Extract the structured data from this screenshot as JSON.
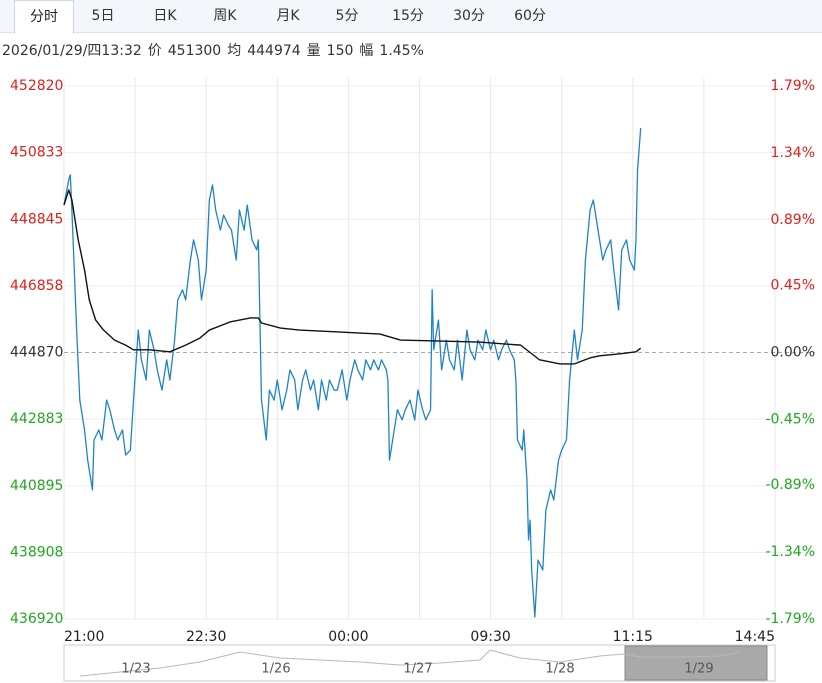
{
  "tabs": [
    "分时",
    "5日",
    "日K",
    "周K",
    "月K",
    "5分",
    "15分",
    "30分",
    "60分"
  ],
  "quote": [
    "2026/01/29/四13:32",
    "价",
    "451300",
    "均",
    "444974",
    "量",
    "150",
    "幅",
    "1.45%"
  ],
  "navigator": [
    "1/23",
    "1/26",
    "1/27",
    "1/28",
    "1/29"
  ],
  "chart_data": {
    "type": "line",
    "xlim": [
      0,
      450
    ],
    "xticks": [
      {
        "value": 0,
        "label": "21:00"
      },
      {
        "value": 90,
        "label": "22:30"
      },
      {
        "value": 180,
        "label": "00:00"
      },
      {
        "value": 270,
        "label": "09:30"
      },
      {
        "value": 360,
        "label": "11:15"
      },
      {
        "value": 450,
        "label": "14:45"
      }
    ],
    "ylim": [
      436920,
      452820
    ],
    "yticks": [
      452820,
      450833,
      448845,
      446858,
      444870,
      442883,
      440895,
      438908,
      436920
    ],
    "y2lim": [
      -1.79,
      1.79
    ],
    "y2ticks": [
      {
        "value": 1.79,
        "label": "1.79%"
      },
      {
        "value": 1.34,
        "label": "1.34%"
      },
      {
        "value": 0.89,
        "label": "0.89%"
      },
      {
        "value": 0.45,
        "label": "0.45%"
      },
      {
        "value": 0,
        "label": "0.00%"
      },
      {
        "value": -0.45,
        "label": "-0.45%"
      },
      {
        "value": -0.89,
        "label": "-0.89%"
      },
      {
        "value": -1.34,
        "label": "-1.34%"
      },
      {
        "value": -1.79,
        "label": "-1.79%"
      }
    ],
    "grid": true,
    "series": [
      {
        "color": "#1f84c6",
        "x": [
          0,
          3,
          4,
          5,
          8,
          10,
          13,
          15,
          18,
          19,
          22,
          24,
          27,
          29,
          32,
          34,
          37,
          39,
          42,
          44,
          47,
          49,
          52,
          54,
          57,
          59,
          62,
          65,
          67,
          70,
          72,
          75,
          77,
          80,
          82,
          85,
          87,
          90,
          92,
          94,
          96,
          99,
          101,
          104,
          106,
          109,
          111,
          114,
          116,
          119,
          122,
          123,
          124,
          125,
          128,
          130,
          133,
          135,
          138,
          141,
          143,
          146,
          148,
          151,
          153,
          156,
          158,
          161,
          163,
          166,
          168,
          171,
          173,
          176,
          179,
          181,
          184,
          186,
          189,
          191,
          194,
          196,
          199,
          201,
          204,
          205,
          206,
          209,
          211,
          214,
          216,
          219,
          222,
          224,
          227,
          229,
          232,
          233,
          234,
          237,
          239,
          242,
          244,
          247,
          249,
          252,
          255,
          257,
          260,
          262,
          265,
          267,
          270,
          272,
          275,
          277,
          280,
          282,
          285,
          286,
          287,
          290,
          291,
          293,
          294,
          295,
          296,
          298,
          300,
          303,
          305,
          308,
          310,
          313,
          315,
          318,
          320,
          323,
          325,
          328,
          330,
          333,
          335,
          338,
          341,
          343,
          346,
          348,
          351,
          353,
          356,
          358,
          361,
          362,
          363,
          365
        ],
        "values": [
          449270,
          450020,
          450170,
          449120,
          445540,
          443450,
          442560,
          441660,
          440770,
          442260,
          442560,
          442260,
          443450,
          443160,
          442560,
          442260,
          442560,
          441810,
          441960,
          443450,
          445540,
          444650,
          444050,
          445540,
          444950,
          444350,
          443750,
          444650,
          444050,
          445240,
          446440,
          446740,
          446440,
          447630,
          448230,
          447630,
          446440,
          447330,
          449420,
          449870,
          449120,
          448520,
          448970,
          448670,
          448520,
          447630,
          449120,
          448520,
          449270,
          448230,
          447930,
          448230,
          445840,
          443450,
          442260,
          443750,
          443450,
          444050,
          443160,
          443750,
          444350,
          444050,
          443160,
          444050,
          444350,
          443750,
          444050,
          443160,
          444050,
          443450,
          444050,
          443750,
          443750,
          444350,
          443450,
          444050,
          444650,
          444350,
          444050,
          444650,
          444350,
          444650,
          444350,
          444650,
          444350,
          444050,
          441660,
          442560,
          443160,
          442860,
          443160,
          443450,
          442860,
          443750,
          443160,
          442860,
          443160,
          446740,
          444950,
          445840,
          444350,
          445240,
          444650,
          444350,
          445240,
          444050,
          445540,
          444950,
          444650,
          445240,
          444950,
          445540,
          444950,
          445240,
          444650,
          444950,
          445240,
          444950,
          444650,
          444050,
          442260,
          441960,
          442560,
          441070,
          439280,
          439870,
          438380,
          436980,
          438680,
          438380,
          440170,
          440770,
          440470,
          441660,
          441960,
          442260,
          444050,
          445540,
          444650,
          445540,
          447630,
          449120,
          449420,
          448520,
          447630,
          447930,
          448230,
          447330,
          446140,
          447930,
          448230,
          447630,
          447330,
          448230,
          450310,
          451570
        ]
      },
      {
        "color": "#111111",
        "x": [
          0,
          3,
          5,
          9,
          13,
          16,
          20,
          25,
          32,
          39,
          44,
          54,
          67,
          77,
          86,
          92,
          105,
          118,
          123,
          125,
          137,
          149,
          175,
          200,
          213,
          238,
          263,
          289,
          301,
          314,
          323,
          333,
          339,
          352,
          362,
          365
        ],
        "values": [
          449270,
          449720,
          449420,
          448230,
          447330,
          446440,
          445840,
          445540,
          445240,
          445090,
          444950,
          444950,
          444890,
          445090,
          445300,
          445540,
          445780,
          445900,
          445900,
          445750,
          445600,
          445540,
          445480,
          445420,
          445240,
          445210,
          445180,
          445090,
          444650,
          444530,
          444530,
          444710,
          444770,
          444830,
          444890,
          445000
        ]
      }
    ]
  }
}
